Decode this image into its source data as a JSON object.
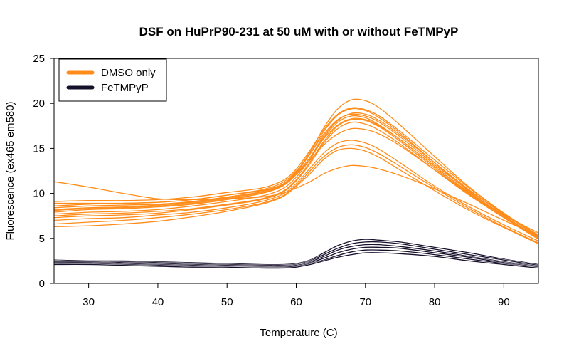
{
  "chart_data": {
    "type": "line",
    "title": "DSF on HuPrP90-231 at 50 uM with or without FeTMPyP",
    "xlabel": "Temperature (C)",
    "ylabel": "Fluorescence (ex465 em580)",
    "xlim": [
      25,
      95
    ],
    "ylim": [
      0,
      25
    ],
    "xticks": [
      30,
      40,
      50,
      60,
      70,
      80,
      90
    ],
    "yticks": [
      0,
      5,
      10,
      15,
      20,
      25
    ],
    "grid": false,
    "legend_position": "top-left",
    "x": [
      25,
      30,
      35,
      40,
      45,
      50,
      55,
      58,
      60,
      62,
      64,
      66,
      68,
      70,
      72,
      75,
      80,
      85,
      90,
      95
    ],
    "series": [
      {
        "name": "DMSO only",
        "color": "#ff8c1a",
        "replicates": [
          [
            11.3,
            10.7,
            10.0,
            9.4,
            9.3,
            9.4,
            9.6,
            10.0,
            10.6,
            11.3,
            12.2,
            12.8,
            13.1,
            13.0,
            12.7,
            12.0,
            10.5,
            8.8,
            7.0,
            5.3
          ],
          [
            8.6,
            8.8,
            8.9,
            9.0,
            9.3,
            9.8,
            10.3,
            11.0,
            12.1,
            13.7,
            15.4,
            16.6,
            17.2,
            17.1,
            16.6,
            15.3,
            12.6,
            9.9,
            7.6,
            5.6
          ],
          [
            8.2,
            8.4,
            8.5,
            8.7,
            9.0,
            9.5,
            10.1,
            10.9,
            12.2,
            14.0,
            16.1,
            17.6,
            18.3,
            18.2,
            17.5,
            16.0,
            13.0,
            10.1,
            7.6,
            5.4
          ],
          [
            7.9,
            8.2,
            8.3,
            8.5,
            8.8,
            9.3,
            10.0,
            10.9,
            12.3,
            14.4,
            16.9,
            18.7,
            19.4,
            19.2,
            18.4,
            16.7,
            13.4,
            10.2,
            7.5,
            5.1
          ],
          [
            8.4,
            8.6,
            8.7,
            8.8,
            9.1,
            9.6,
            10.2,
            11.0,
            12.4,
            14.6,
            17.3,
            19.4,
            20.4,
            20.3,
            19.5,
            17.6,
            14.1,
            10.7,
            7.8,
            5.3
          ],
          [
            7.5,
            7.7,
            7.8,
            8.0,
            8.3,
            8.8,
            9.4,
            10.2,
            11.5,
            13.5,
            15.8,
            17.5,
            18.2,
            18.1,
            17.4,
            15.8,
            12.8,
            9.9,
            7.3,
            4.9
          ],
          [
            7.0,
            7.2,
            7.3,
            7.6,
            7.9,
            8.4,
            9.1,
            9.9,
            11.1,
            12.8,
            14.5,
            15.6,
            15.9,
            15.6,
            14.9,
            13.4,
            10.8,
            8.5,
            6.5,
            4.7
          ],
          [
            6.6,
            6.8,
            7.0,
            7.3,
            7.7,
            8.2,
            8.9,
            9.7,
            10.9,
            12.5,
            14.1,
            15.1,
            15.4,
            15.1,
            14.4,
            13.0,
            10.6,
            8.3,
            6.3,
            4.5
          ],
          [
            6.3,
            6.4,
            6.6,
            6.9,
            7.4,
            8.0,
            8.8,
            9.6,
            10.8,
            12.2,
            13.8,
            14.8,
            15.0,
            14.7,
            14.0,
            12.6,
            10.3,
            8.1,
            6.2,
            4.4
          ],
          [
            9.1,
            9.2,
            9.2,
            9.3,
            9.6,
            10.1,
            10.6,
            11.4,
            12.7,
            14.8,
            17.1,
            18.8,
            19.5,
            19.3,
            18.6,
            16.9,
            13.7,
            10.6,
            7.8,
            5.3
          ],
          [
            8.9,
            8.9,
            8.9,
            9.0,
            9.3,
            9.8,
            10.4,
            11.2,
            12.5,
            14.4,
            16.6,
            18.2,
            18.8,
            18.6,
            17.9,
            16.3,
            13.2,
            10.3,
            7.7,
            5.2
          ],
          [
            7.7,
            7.9,
            8.0,
            8.2,
            8.6,
            9.1,
            9.7,
            10.5,
            11.8,
            13.8,
            16.2,
            17.9,
            18.6,
            18.4,
            17.6,
            16.0,
            13.0,
            10.0,
            7.4,
            5.0
          ],
          [
            8.1,
            8.3,
            8.4,
            8.6,
            8.9,
            9.4,
            10.0,
            10.8,
            12.1,
            14.0,
            16.4,
            18.1,
            18.9,
            18.8,
            18.1,
            16.5,
            13.4,
            10.4,
            7.7,
            5.2
          ],
          [
            7.3,
            7.5,
            7.6,
            7.8,
            8.2,
            8.7,
            9.3,
            10.1,
            11.4,
            13.3,
            15.6,
            17.2,
            17.9,
            17.7,
            17.0,
            15.5,
            12.6,
            9.8,
            7.3,
            5.0
          ]
        ]
      },
      {
        "name": "FeTMPyP",
        "color": "#17102b",
        "replicates": [
          [
            2.6,
            2.5,
            2.5,
            2.4,
            2.3,
            2.2,
            2.1,
            2.1,
            2.2,
            2.6,
            3.4,
            4.2,
            4.7,
            4.9,
            4.8,
            4.6,
            4.0,
            3.4,
            2.7,
            2.1
          ],
          [
            2.5,
            2.4,
            2.4,
            2.3,
            2.2,
            2.1,
            2.0,
            2.0,
            2.1,
            2.5,
            3.2,
            3.9,
            4.4,
            4.6,
            4.6,
            4.4,
            3.8,
            3.2,
            2.6,
            2.0
          ],
          [
            2.4,
            2.4,
            2.3,
            2.2,
            2.1,
            2.0,
            1.9,
            1.9,
            2.0,
            2.4,
            3.0,
            3.7,
            4.1,
            4.3,
            4.3,
            4.1,
            3.6,
            3.0,
            2.4,
            1.9
          ],
          [
            2.3,
            2.3,
            2.2,
            2.1,
            2.0,
            1.9,
            1.9,
            1.9,
            2.0,
            2.3,
            2.8,
            3.4,
            3.8,
            4.0,
            4.0,
            3.9,
            3.4,
            2.9,
            2.3,
            1.8
          ],
          [
            2.2,
            2.2,
            2.1,
            2.0,
            1.9,
            1.8,
            1.8,
            1.8,
            1.9,
            2.2,
            2.6,
            3.1,
            3.5,
            3.7,
            3.7,
            3.6,
            3.2,
            2.7,
            2.2,
            1.7
          ],
          [
            2.1,
            2.1,
            2.0,
            1.9,
            1.8,
            1.8,
            1.7,
            1.7,
            1.8,
            2.1,
            2.5,
            2.9,
            3.2,
            3.4,
            3.4,
            3.3,
            3.0,
            2.5,
            2.1,
            1.7
          ]
        ]
      }
    ]
  }
}
